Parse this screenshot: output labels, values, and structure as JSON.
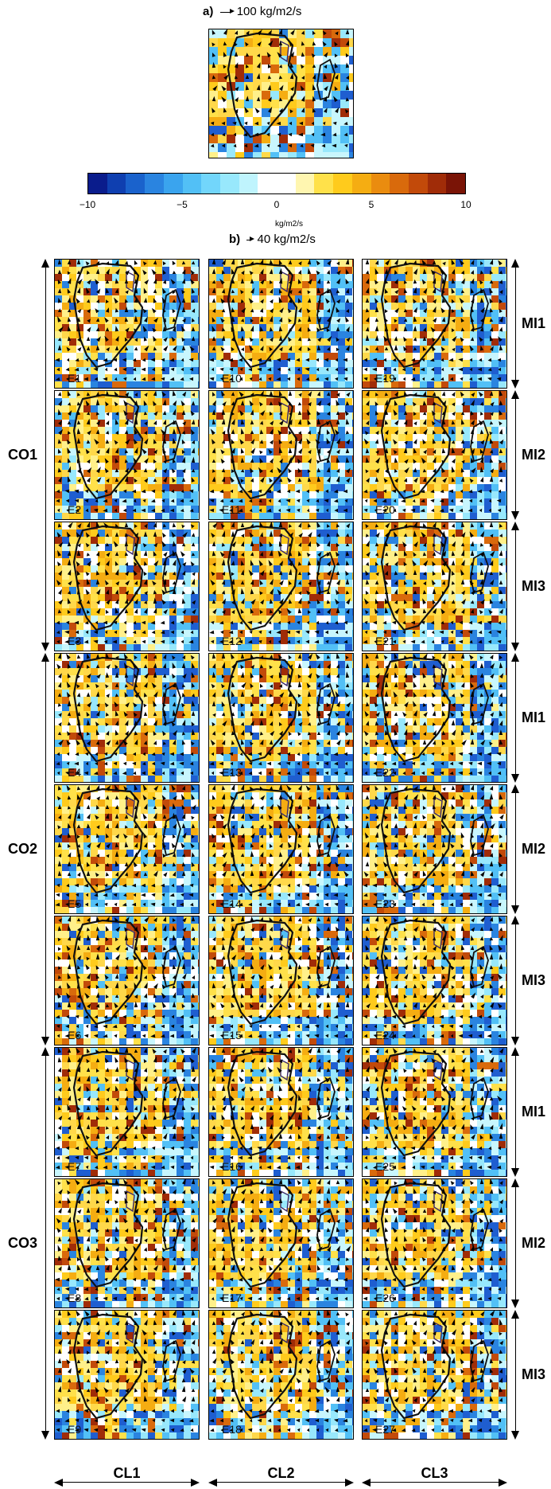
{
  "panel_a": {
    "letter": "a)",
    "ref_vector": "100 kg/m2/s"
  },
  "panel_b": {
    "letter": "b)",
    "ref_vector": "40 kg/m2/s"
  },
  "colorbar": {
    "ticks": [
      "−10",
      "−5",
      "0",
      "5",
      "10"
    ],
    "unit": "kg/m2/s",
    "colors": [
      "#0a1c8c",
      "#0f3fb0",
      "#1a62cc",
      "#2a84e0",
      "#3aa4ee",
      "#52c0f6",
      "#72d6fb",
      "#98e8fc",
      "#bff4fd",
      "#ffffff",
      "#ffffff",
      "#fff6b0",
      "#ffe14a",
      "#ffcb1c",
      "#f5ad12",
      "#ea8c0f",
      "#d96a0c",
      "#c24a0a",
      "#a02c08",
      "#7a1406"
    ]
  },
  "columns": [
    "CL1",
    "CL2",
    "CL3"
  ],
  "row_groups": [
    "CO1",
    "CO2",
    "CO3"
  ],
  "row_labels": [
    "MI1",
    "MI2",
    "MI3",
    "MI1",
    "MI2",
    "MI3",
    "MI1",
    "MI2",
    "MI3"
  ],
  "panels": [
    [
      "E1",
      "E10",
      "E19"
    ],
    [
      "E2",
      "E11",
      "E20"
    ],
    [
      "E3",
      "E12",
      "E21"
    ],
    [
      "E4",
      "E13",
      "E22"
    ],
    [
      "E5",
      "E14",
      "E23"
    ],
    [
      "E6",
      "E15",
      "E24"
    ],
    [
      "E7",
      "E16",
      "E25"
    ],
    [
      "E8",
      "E17",
      "E26"
    ],
    [
      "E9",
      "E18",
      "E27"
    ]
  ]
}
